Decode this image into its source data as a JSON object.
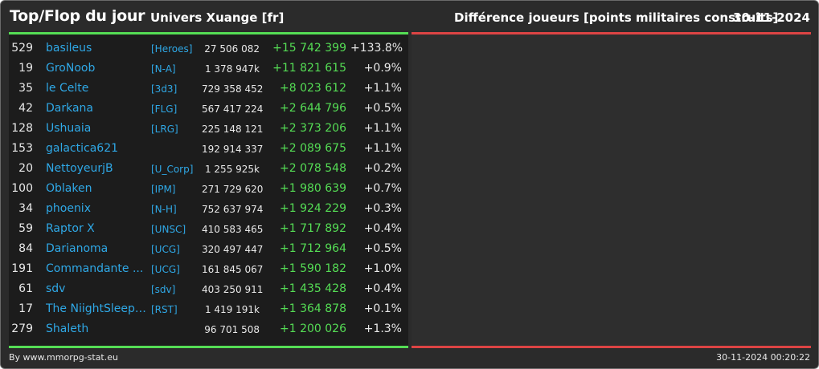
{
  "header": {
    "title": "Top/Flop du jour",
    "universe": "Univers Xuange [fr]",
    "subtitle": "Différence joueurs [points militaires construits]",
    "date": "30-11-2024"
  },
  "colors": {
    "background": "#2b2b2b",
    "panel_left": "#1c1c1c",
    "panel_right": "#2e2e2e",
    "link": "#2fa8e6",
    "gain": "#55dd55",
    "loss": "#dd4444"
  },
  "top_rows": [
    {
      "rank": "529",
      "name": "basileus",
      "ally": "[Heroes]",
      "points": "27 506 082",
      "diff": "+15 742 399",
      "pct": "+133.8%"
    },
    {
      "rank": "19",
      "name": "GroNoob",
      "ally": "[N-A]",
      "points": "1 378 947k",
      "diff": "+11 821 615",
      "pct": "+0.9%"
    },
    {
      "rank": "35",
      "name": "le Celte",
      "ally": "[3d3]",
      "points": "729 358 452",
      "diff": "+8 023 612",
      "pct": "+1.1%"
    },
    {
      "rank": "42",
      "name": "Darkana",
      "ally": "[FLG]",
      "points": "567 417 224",
      "diff": "+2 644 796",
      "pct": "+0.5%"
    },
    {
      "rank": "128",
      "name": "Ushuaia",
      "ally": "[LRG]",
      "points": "225 148 121",
      "diff": "+2 373 206",
      "pct": "+1.1%"
    },
    {
      "rank": "153",
      "name": "galactica621",
      "ally": "",
      "points": "192 914 337",
      "diff": "+2 089 675",
      "pct": "+1.1%"
    },
    {
      "rank": "20",
      "name": "NettoyeurjB",
      "ally": "[U_Corp]",
      "points": "1 255 925k",
      "diff": "+2 078 548",
      "pct": "+0.2%"
    },
    {
      "rank": "100",
      "name": "Oblaken",
      "ally": "[IPM]",
      "points": "271 729 620",
      "diff": "+1 980 639",
      "pct": "+0.7%"
    },
    {
      "rank": "34",
      "name": "phoenix",
      "ally": "[N-H]",
      "points": "752 637 974",
      "diff": "+1 924 229",
      "pct": "+0.3%"
    },
    {
      "rank": "59",
      "name": "Raptor X",
      "ally": "[UNSC]",
      "points": "410 583 465",
      "diff": "+1 717 892",
      "pct": "+0.4%"
    },
    {
      "rank": "84",
      "name": "Darianoma",
      "ally": "[UCG]",
      "points": "320 497 447",
      "diff": "+1 712 964",
      "pct": "+0.5%"
    },
    {
      "rank": "191",
      "name": "Commandante ...",
      "ally": "[UCG]",
      "points": "161 845 067",
      "diff": "+1 590 182",
      "pct": "+1.0%"
    },
    {
      "rank": "61",
      "name": "sdv",
      "ally": "[sdv]",
      "points": "403 250 911",
      "diff": "+1 435 428",
      "pct": "+0.4%"
    },
    {
      "rank": "17",
      "name": "The NiightSleepe...",
      "ally": "[RST]",
      "points": "1 419 191k",
      "diff": "+1 364 878",
      "pct": "+0.1%"
    },
    {
      "rank": "279",
      "name": "Shaleth",
      "ally": "",
      "points": "96 701 508",
      "diff": "+1 200 026",
      "pct": "+1.3%"
    }
  ],
  "footer": {
    "credit": "By www.mmorpg-stat.eu",
    "timestamp": "30-11-2024 00:20:22"
  }
}
